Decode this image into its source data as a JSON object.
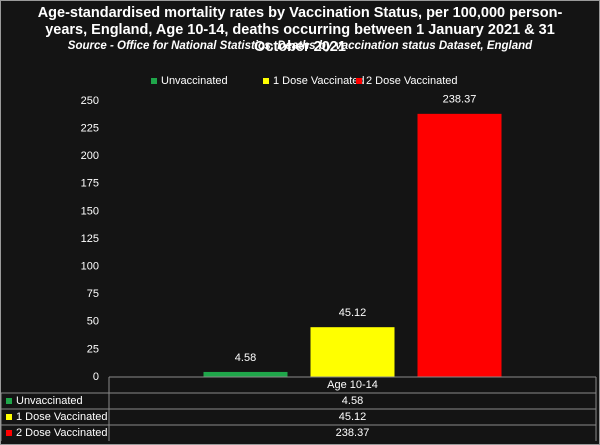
{
  "chart_data": {
    "type": "bar",
    "title": "Age-standardised mortality rates by Vaccination Status, per 100,000 person-years, England, Age 10-14, deaths occurring between 1 January 2021 & 31 October 2021",
    "subtitle": "Source - Office for National Statistics, Deaths by vaccination status Dataset, England",
    "categories": [
      "Age 10-14"
    ],
    "series": [
      {
        "name": "Unvaccinated",
        "color": "#1fa64a",
        "values": [
          4.58
        ]
      },
      {
        "name": "1 Dose Vaccinated",
        "color": "#ffff00",
        "values": [
          45.12
        ]
      },
      {
        "name": "2 Dose Vaccinated",
        "color": "#ff0000",
        "values": [
          238.37
        ]
      }
    ],
    "ylim": [
      0,
      250
    ],
    "yticks": [
      0,
      25,
      50,
      75,
      100,
      125,
      150,
      175,
      200,
      225,
      250
    ],
    "grid": false,
    "legend": "top",
    "data_table": true
  }
}
